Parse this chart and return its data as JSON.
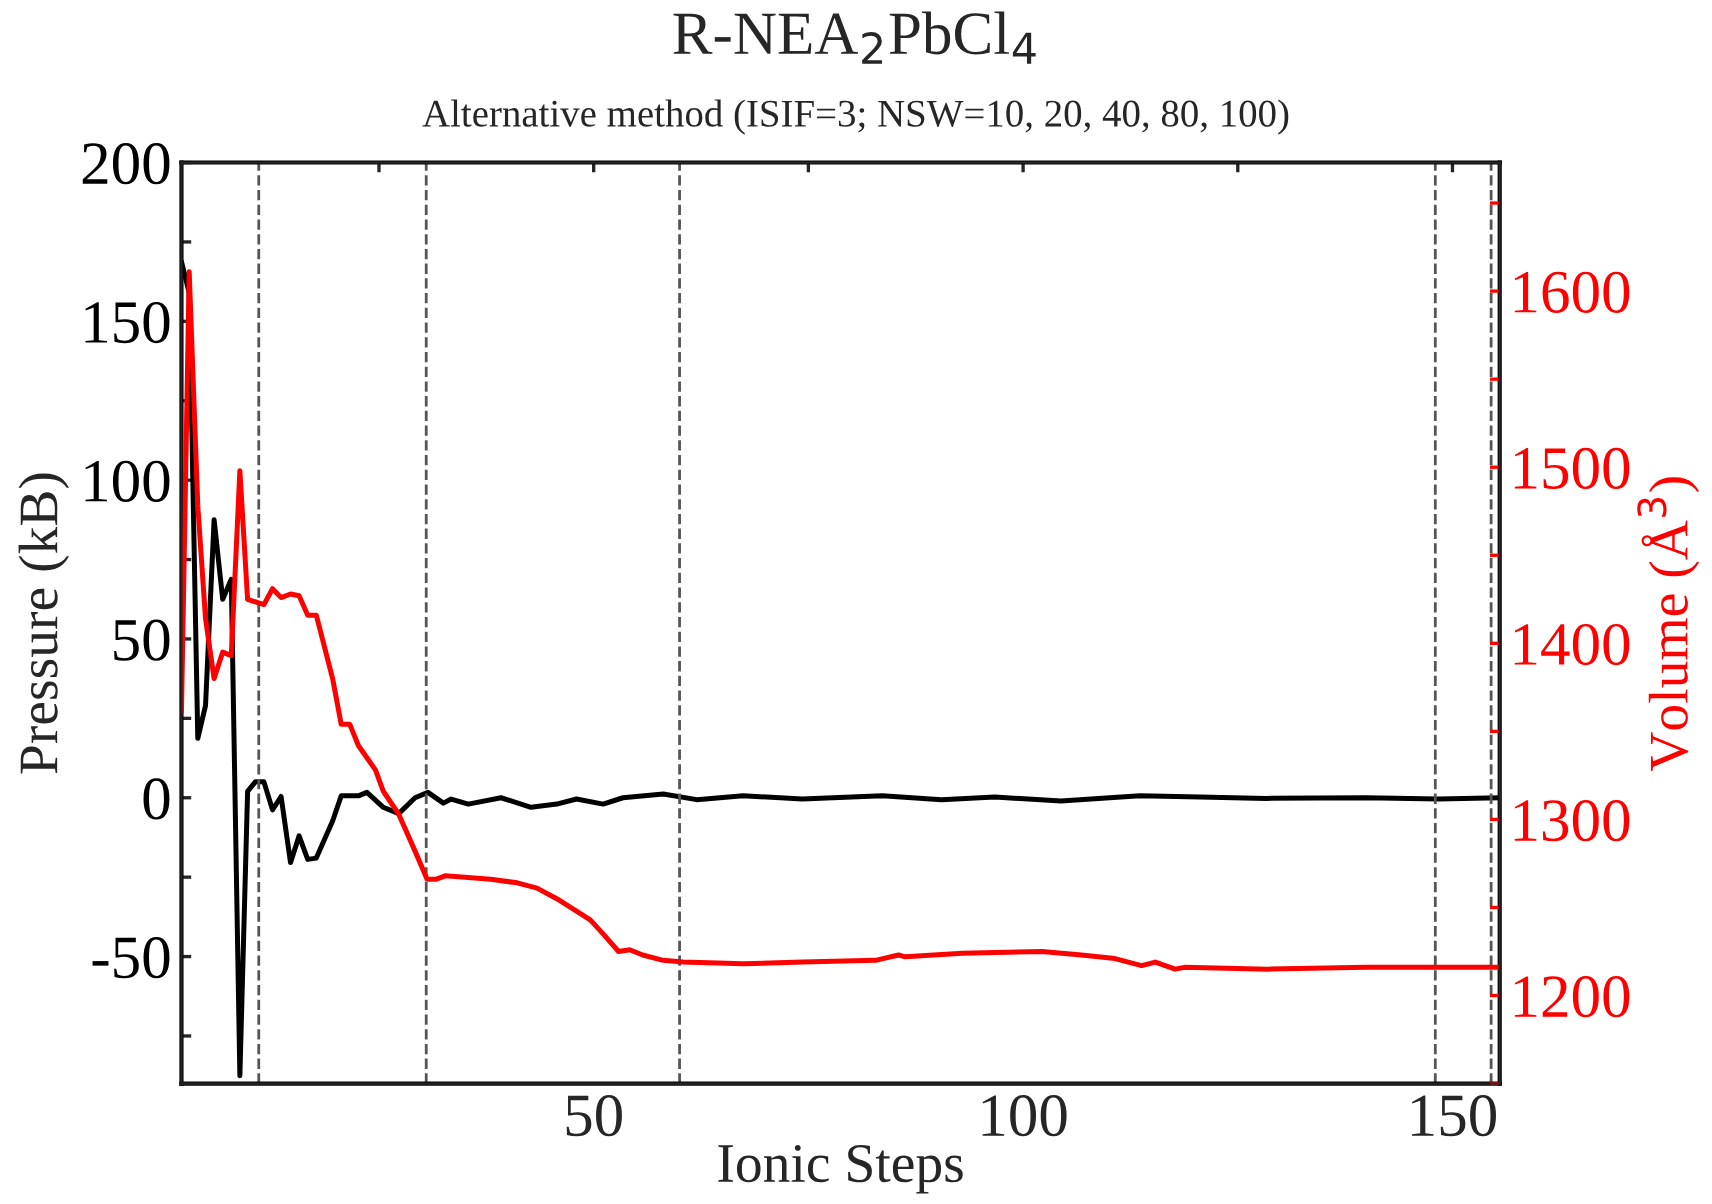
{
  "chart_data": {
    "type": "line",
    "title": "R-NEA$_{2}$PbCl$_{4}$",
    "subtitle": "Alternative method (ISIF=3; NSW=10, 20, 40, 80, 100)",
    "xlabel": "Ionic Steps",
    "ylabel": "Pressure (kB)",
    "y2label": "Volume (Å$^{3}$)",
    "xlim": [
      2,
      155.5
    ],
    "xticks": [
      {
        "value": 25,
        "label": null
      },
      50,
      {
        "value": 75,
        "label": null
      },
      100,
      {
        "value": 125,
        "label": null
      },
      150
    ],
    "ylim": [
      -90,
      200
    ],
    "yticks": [
      {
        "value": -75,
        "label": null
      },
      -50,
      {
        "value": -25,
        "label": null
      },
      0,
      {
        "value": 25,
        "label": null
      },
      50,
      {
        "value": 75,
        "label": null
      },
      100,
      {
        "value": 125,
        "label": null
      },
      150,
      {
        "value": 175,
        "label": null
      },
      200
    ],
    "y2lim": [
      1150,
      1673
    ],
    "y2ticks": [
      {
        "value": 1150,
        "label": null
      },
      1200,
      {
        "value": 1250,
        "label": null
      },
      1300,
      {
        "value": 1350,
        "label": null
      },
      1400,
      {
        "value": 1450,
        "label": null
      },
      1500,
      {
        "value": 1550,
        "label": null
      },
      1600,
      {
        "value": 1650,
        "label": null
      }
    ],
    "grid": false,
    "legend": false,
    "marker": "none",
    "line_style": "solid",
    "series": [
      {
        "color": "#000000",
        "x": [
          2,
          2.9,
          3.9,
          4.8,
          5.8,
          6.8,
          7.8,
          8.8,
          9.7,
          10.6,
          11.6,
          12.6,
          13.6,
          14.7,
          15.7,
          16.7,
          17.7,
          19.6,
          20.6,
          22.6,
          23.6,
          25.5,
          27.3,
          29.2,
          30.7,
          32.5,
          33.4,
          35.4,
          39.2,
          42.7,
          45.7,
          48,
          51.1,
          53.4,
          58.1,
          62,
          67.4,
          74.3,
          83.6,
          90.5,
          96.7,
          104.4,
          113.6,
          120.6,
          128.3,
          139.9,
          148.4,
          155.5
        ],
        "values": [
          168.8,
          159,
          18.7,
          29,
          87.5,
          62.5,
          68.8,
          -87.5,
          2,
          5,
          5,
          -3.8,
          0.4,
          -20.4,
          -12,
          -19.4,
          -19,
          -7.3,
          0.6,
          0.6,
          1.7,
          -3,
          -5,
          0,
          1.7,
          -1.7,
          -0.4,
          -2,
          0,
          -3,
          -2,
          -0.4,
          -2,
          0,
          1.2,
          -0.6,
          0.6,
          -0.4,
          0.6,
          -0.6,
          0.2,
          -1,
          0.6,
          0.2,
          -0.2,
          0,
          -0.4,
          0
        ]
      },
      {
        "color": "#ff0000",
        "axis": "y2",
        "x": [
          2,
          2.9,
          3.9,
          4.8,
          5.8,
          6.8,
          7.8,
          8.8,
          9.7,
          11.6,
          12.6,
          13.6,
          14.7,
          15.7,
          16.7,
          17.7,
          19.6,
          20.6,
          21.6,
          22.6,
          23.6,
          24.6,
          25.5,
          27.3,
          29.2,
          30.6,
          31.6,
          32.7,
          35.4,
          38,
          41.1,
          43.4,
          45.7,
          48,
          49.6,
          51.1,
          52.9,
          54.2,
          55.7,
          58.1,
          60.4,
          67.4,
          74.3,
          82.8,
          85.5,
          86.3,
          92.9,
          102.2,
          106.8,
          110.7,
          113.8,
          115.4,
          117.7,
          118.8,
          128.5,
          140,
          155.5
        ],
        "values": [
          1361,
          1611,
          1478,
          1414,
          1380,
          1395,
          1393,
          1498,
          1425,
          1422,
          1431,
          1426,
          1428,
          1427,
          1416,
          1416,
          1380,
          1354,
          1354,
          1342,
          1335,
          1328,
          1316,
          1303,
          1282,
          1266,
          1266,
          1268,
          1267,
          1266,
          1264,
          1261,
          1255,
          1248,
          1243,
          1235,
          1225,
          1226,
          1223,
          1220,
          1219,
          1218,
          1219,
          1220,
          1223,
          1222,
          1224,
          1225,
          1223,
          1221,
          1217,
          1219,
          1215,
          1216,
          1215,
          1216,
          1216
        ]
      }
    ],
    "ref_lines": [
      {
        "axis": "x",
        "value": 11,
        "color": "#555555",
        "line_style": "dashed"
      },
      {
        "axis": "x",
        "value": 30.5,
        "color": "#555555",
        "line_style": "dashed"
      },
      {
        "axis": "x",
        "value": 60,
        "color": "#555555",
        "line_style": "dashed"
      },
      {
        "axis": "x",
        "value": 148,
        "color": "#555555",
        "line_style": "dashed"
      },
      {
        "axis": "x",
        "value": 154.5,
        "color": "#555555",
        "line_style": "dashed"
      }
    ]
  }
}
